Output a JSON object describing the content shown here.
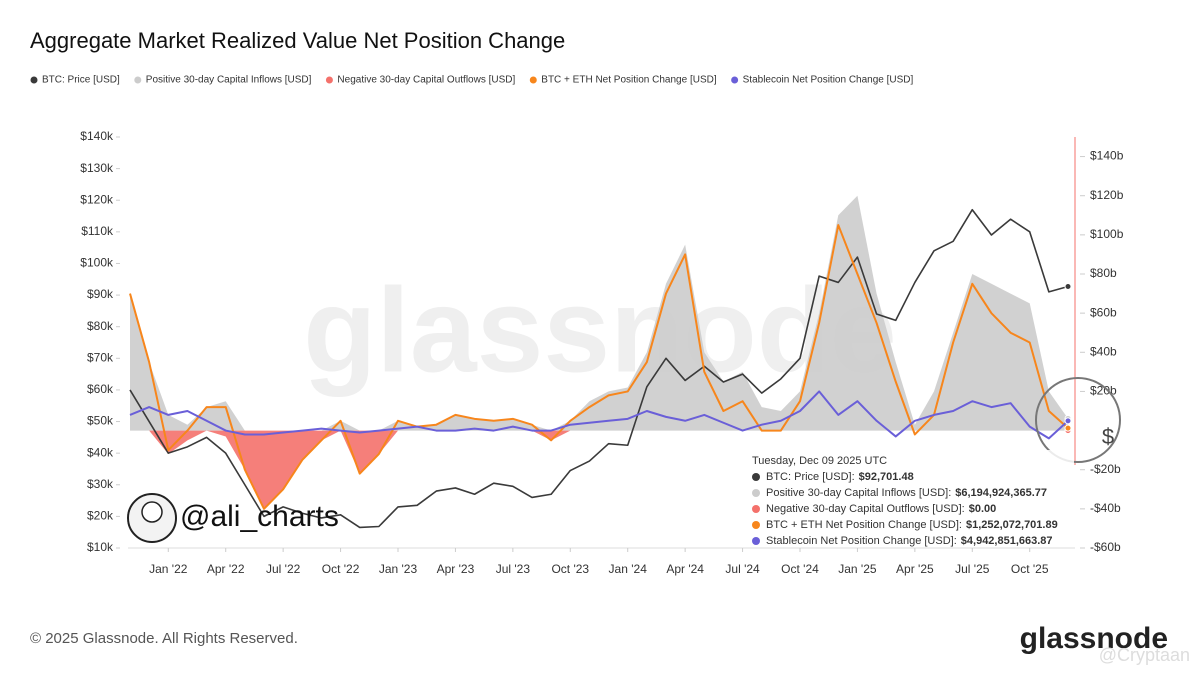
{
  "chart_data": {
    "type": "line",
    "title": "Aggregate Market Realized Value Net Position Change",
    "x": [
      "2021-11",
      "2021-12",
      "2022-01",
      "2022-02",
      "2022-03",
      "2022-04",
      "2022-05",
      "2022-06",
      "2022-07",
      "2022-08",
      "2022-09",
      "2022-10",
      "2022-11",
      "2022-12",
      "2023-01",
      "2023-02",
      "2023-03",
      "2023-04",
      "2023-05",
      "2023-06",
      "2023-07",
      "2023-08",
      "2023-09",
      "2023-10",
      "2023-11",
      "2023-12",
      "2024-01",
      "2024-02",
      "2024-03",
      "2024-04",
      "2024-05",
      "2024-06",
      "2024-07",
      "2024-08",
      "2024-09",
      "2024-10",
      "2024-11",
      "2024-12",
      "2025-01",
      "2025-02",
      "2025-03",
      "2025-04",
      "2025-05",
      "2025-06",
      "2025-07",
      "2025-08",
      "2025-09",
      "2025-10",
      "2025-11",
      "2025-12"
    ],
    "xlim": [
      "2021-11",
      "2025-12"
    ],
    "xticks": [
      {
        "value": "2022-01",
        "label": "Jan '22"
      },
      {
        "value": "2022-04",
        "label": "Apr '22"
      },
      {
        "value": "2022-07",
        "label": "Jul '22"
      },
      {
        "value": "2022-10",
        "label": "Oct '22"
      },
      {
        "value": "2023-01",
        "label": "Jan '23"
      },
      {
        "value": "2023-04",
        "label": "Apr '23"
      },
      {
        "value": "2023-07",
        "label": "Jul '23"
      },
      {
        "value": "2023-10",
        "label": "Oct '23"
      },
      {
        "value": "2024-01",
        "label": "Jan '24"
      },
      {
        "value": "2024-04",
        "label": "Apr '24"
      },
      {
        "value": "2024-07",
        "label": "Jul '24"
      },
      {
        "value": "2024-10",
        "label": "Oct '24"
      },
      {
        "value": "2025-01",
        "label": "Jan '25"
      },
      {
        "value": "2025-04",
        "label": "Apr '25"
      },
      {
        "value": "2025-07",
        "label": "Jul '25"
      },
      {
        "value": "2025-10",
        "label": "Oct '25"
      }
    ],
    "ylim": [
      10000,
      140000
    ],
    "yticks": [
      {
        "value": 10000,
        "label": "$10k"
      },
      {
        "value": 20000,
        "label": "$20k"
      },
      {
        "value": 30000,
        "label": "$30k"
      },
      {
        "value": 40000,
        "label": "$40k"
      },
      {
        "value": 50000,
        "label": "$50k"
      },
      {
        "value": 60000,
        "label": "$60k"
      },
      {
        "value": 70000,
        "label": "$70k"
      },
      {
        "value": 80000,
        "label": "$80k"
      },
      {
        "value": 90000,
        "label": "$90k"
      },
      {
        "value": 100000,
        "label": "$100k"
      },
      {
        "value": 110000,
        "label": "$110k"
      },
      {
        "value": 120000,
        "label": "$120k"
      },
      {
        "value": 130000,
        "label": "$130k"
      },
      {
        "value": 140000,
        "label": "$140k"
      }
    ],
    "y2lim": [
      -60,
      150
    ],
    "y2ticks": [
      {
        "value": -60,
        "label": "-$60b"
      },
      {
        "value": -40,
        "label": "-$40b"
      },
      {
        "value": -20,
        "label": "-$20b"
      },
      {
        "value": 20,
        "label": "$20b"
      },
      {
        "value": 40,
        "label": "$40b"
      },
      {
        "value": 60,
        "label": "$60b"
      },
      {
        "value": 80,
        "label": "$80b"
      },
      {
        "value": 100,
        "label": "$100b"
      },
      {
        "value": 120,
        "label": "$120b"
      },
      {
        "value": 140,
        "label": "$140b"
      }
    ],
    "grid": false,
    "series": [
      {
        "name": "BTC: Price [USD]",
        "color": "#3a3a3a",
        "axis": "y",
        "kind": "line",
        "values": [
          60000,
          50000,
          40000,
          42000,
          45000,
          40000,
          30000,
          20000,
          23000,
          21000,
          19500,
          20500,
          16500,
          16800,
          23000,
          23500,
          28000,
          29000,
          27000,
          30500,
          29500,
          26000,
          27000,
          34500,
          37500,
          43000,
          42500,
          61000,
          70000,
          63000,
          67500,
          62500,
          65000,
          59000,
          63500,
          70000,
          96000,
          94000,
          102000,
          84000,
          82000,
          94000,
          104000,
          107000,
          117000,
          109000,
          114000,
          110000,
          91000,
          92701.48
        ]
      },
      {
        "name": "Positive 30-day Capital Inflows [USD]",
        "color": "#cccccc",
        "axis": "y2",
        "kind": "area",
        "values": [
          70,
          35,
          8,
          3,
          12,
          15,
          0,
          0,
          0,
          0,
          0,
          5,
          0,
          0,
          5,
          2,
          3,
          8,
          6,
          5,
          6,
          3,
          0,
          5,
          15,
          20,
          22,
          40,
          75,
          95,
          40,
          25,
          30,
          12,
          10,
          20,
          60,
          110,
          120,
          70,
          35,
          3,
          20,
          50,
          80,
          75,
          70,
          65,
          20,
          6.19492436577
        ]
      },
      {
        "name": "Negative 30-day Capital Outflows [USD]",
        "color": "#f4716b",
        "axis": "y2",
        "kind": "area",
        "values": [
          0,
          0,
          -12,
          -5,
          0,
          -3,
          -20,
          -40,
          -30,
          -15,
          -5,
          0,
          -22,
          -12,
          0,
          0,
          0,
          0,
          0,
          0,
          0,
          0,
          -5,
          0,
          0,
          0,
          0,
          0,
          0,
          0,
          0,
          0,
          0,
          0,
          0,
          0,
          0,
          0,
          0,
          0,
          0,
          0,
          0,
          0,
          0,
          0,
          0,
          0,
          0,
          0
        ]
      },
      {
        "name": "BTC + ETH Net Position Change [USD]",
        "color": "#f7861c",
        "axis": "y2",
        "kind": "line",
        "values": [
          70,
          35,
          -10,
          0,
          12,
          12,
          -20,
          -40,
          -30,
          -15,
          -5,
          5,
          -22,
          -12,
          5,
          2,
          3,
          8,
          6,
          5,
          6,
          3,
          -5,
          5,
          12,
          18,
          20,
          35,
          70,
          90,
          30,
          10,
          15,
          0,
          0,
          15,
          55,
          105,
          80,
          55,
          25,
          -2,
          8,
          45,
          75,
          60,
          50,
          45,
          10,
          1.25207270189
        ]
      },
      {
        "name": "Stablecoin Net Position Change [USD]",
        "color": "#6a5fd8",
        "axis": "y2",
        "kind": "line",
        "values": [
          8,
          12,
          8,
          10,
          5,
          0,
          -2,
          -2,
          -1,
          0,
          1,
          0,
          -1,
          0,
          1,
          2,
          0,
          0,
          1,
          0,
          2,
          0,
          0,
          3,
          4,
          5,
          6,
          10,
          7,
          5,
          8,
          4,
          0,
          3,
          5,
          10,
          20,
          8,
          15,
          5,
          -3,
          5,
          8,
          10,
          15,
          12,
          14,
          2,
          -4,
          4.94285166387
        ]
      }
    ],
    "tooltip": {
      "date": "Tuesday, Dec 09 2025 UTC",
      "separator": ":",
      "value_labels": [
        "$92,701.48",
        "$6,194,924,365.77",
        "$0.00",
        "$1,252,072,701.89",
        "$4,942,851,663.87"
      ]
    },
    "watermark": "@ali_charts",
    "icon": "$",
    "footer": "© 2025 Glassnode. All Rights Reserved.",
    "brand": "glassnode",
    "credit": "@Cryptaan"
  }
}
